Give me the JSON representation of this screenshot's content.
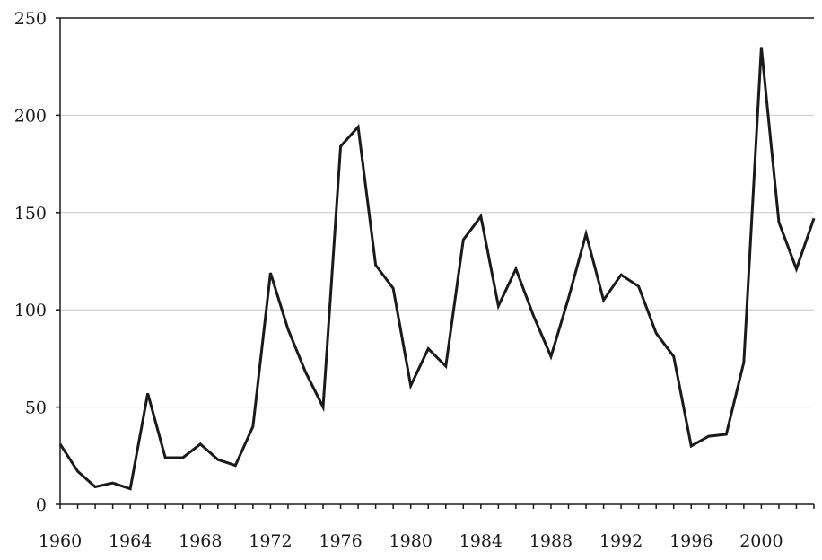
{
  "chart_data": {
    "type": "line",
    "title": "",
    "xlabel": "",
    "ylabel": "",
    "xlim": [
      1960,
      2003
    ],
    "ylim": [
      0,
      250
    ],
    "grid": "horizontal",
    "x_ticks": [
      1960,
      1964,
      1968,
      1972,
      1976,
      1980,
      1984,
      1988,
      1992,
      1996,
      2000
    ],
    "y_ticks": [
      0,
      50,
      100,
      150,
      200,
      250
    ],
    "series": [
      {
        "x": [
          1960,
          1961,
          1962,
          1963,
          1964,
          1965,
          1966,
          1967,
          1968,
          1969,
          1970,
          1971,
          1972,
          1973,
          1974,
          1975,
          1976,
          1977,
          1978,
          1979,
          1980,
          1981,
          1982,
          1983,
          1984,
          1985,
          1986,
          1987,
          1988,
          1989,
          1990,
          1991,
          1992,
          1993,
          1994,
          1995,
          1996,
          1997,
          1998,
          1999,
          2000,
          2001,
          2002,
          2003
        ],
        "values": [
          31,
          17,
          9,
          11,
          8,
          57,
          24,
          24,
          31,
          23,
          20,
          40,
          119,
          90,
          68,
          50,
          184,
          194,
          123,
          111,
          61,
          80,
          71,
          136,
          148,
          102,
          121,
          97,
          76,
          106,
          139,
          105,
          118,
          112,
          88,
          76,
          30,
          35,
          36,
          73,
          235,
          145,
          121,
          147
        ]
      }
    ],
    "colors": {
      "line": "#1a1a1a",
      "grid": "#c8c8c8",
      "axis": "#1a1a1a",
      "text": "#1a1a1a"
    }
  }
}
